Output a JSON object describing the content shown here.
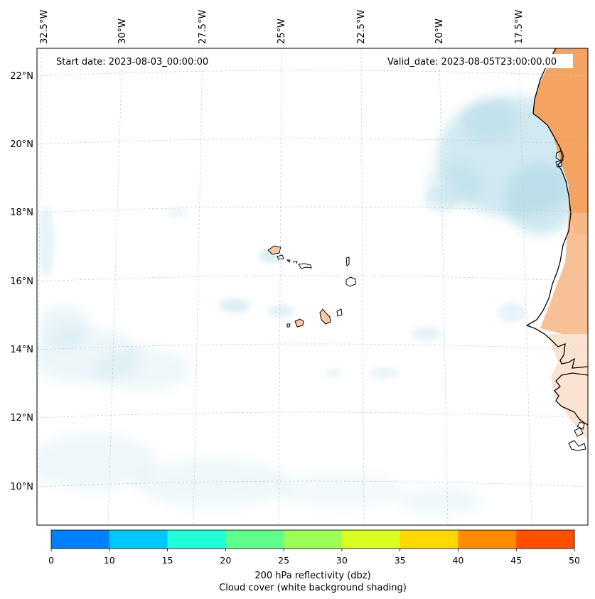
{
  "map": {
    "start_date": "Start date: 2023-08-03_00:00:00",
    "valid_date": "Valid_date: 2023-08-05T23:00:00.00",
    "lon_labels": [
      "32.5°W",
      "30°W",
      "27.5°W",
      "25°W",
      "22.5°W",
      "20°W",
      "17.5°W"
    ],
    "lat_labels": [
      "22°N",
      "20°N",
      "18°N",
      "16°N",
      "14°N",
      "12°N",
      "10°N"
    ]
  },
  "colorbar": {
    "bins": [
      {
        "from": 0,
        "to": 10,
        "color": "#0080ff"
      },
      {
        "from": 10,
        "to": 15,
        "color": "#00c8ff"
      },
      {
        "from": 15,
        "to": 20,
        "color": "#20ffd8"
      },
      {
        "from": 20,
        "to": 25,
        "color": "#60ff8c"
      },
      {
        "from": 25,
        "to": 30,
        "color": "#9cff58"
      },
      {
        "from": 30,
        "to": 35,
        "color": "#d8ff20"
      },
      {
        "from": 35,
        "to": 40,
        "color": "#ffd800"
      },
      {
        "from": 40,
        "to": 45,
        "color": "#ff8c00"
      },
      {
        "from": 45,
        "to": 50,
        "color": "#ff5000"
      }
    ],
    "ticks": [
      "0",
      "10",
      "15",
      "20",
      "25",
      "30",
      "35",
      "40",
      "45",
      "50"
    ],
    "label_line1": "200 hPa reflectivity (dbz)",
    "label_line2": "Cloud cover (white background shading)"
  },
  "colors": {
    "cloud": "#add8e6",
    "land": "#f4a460",
    "island": "#f7c8a8",
    "grid": "#c8c8c8"
  }
}
